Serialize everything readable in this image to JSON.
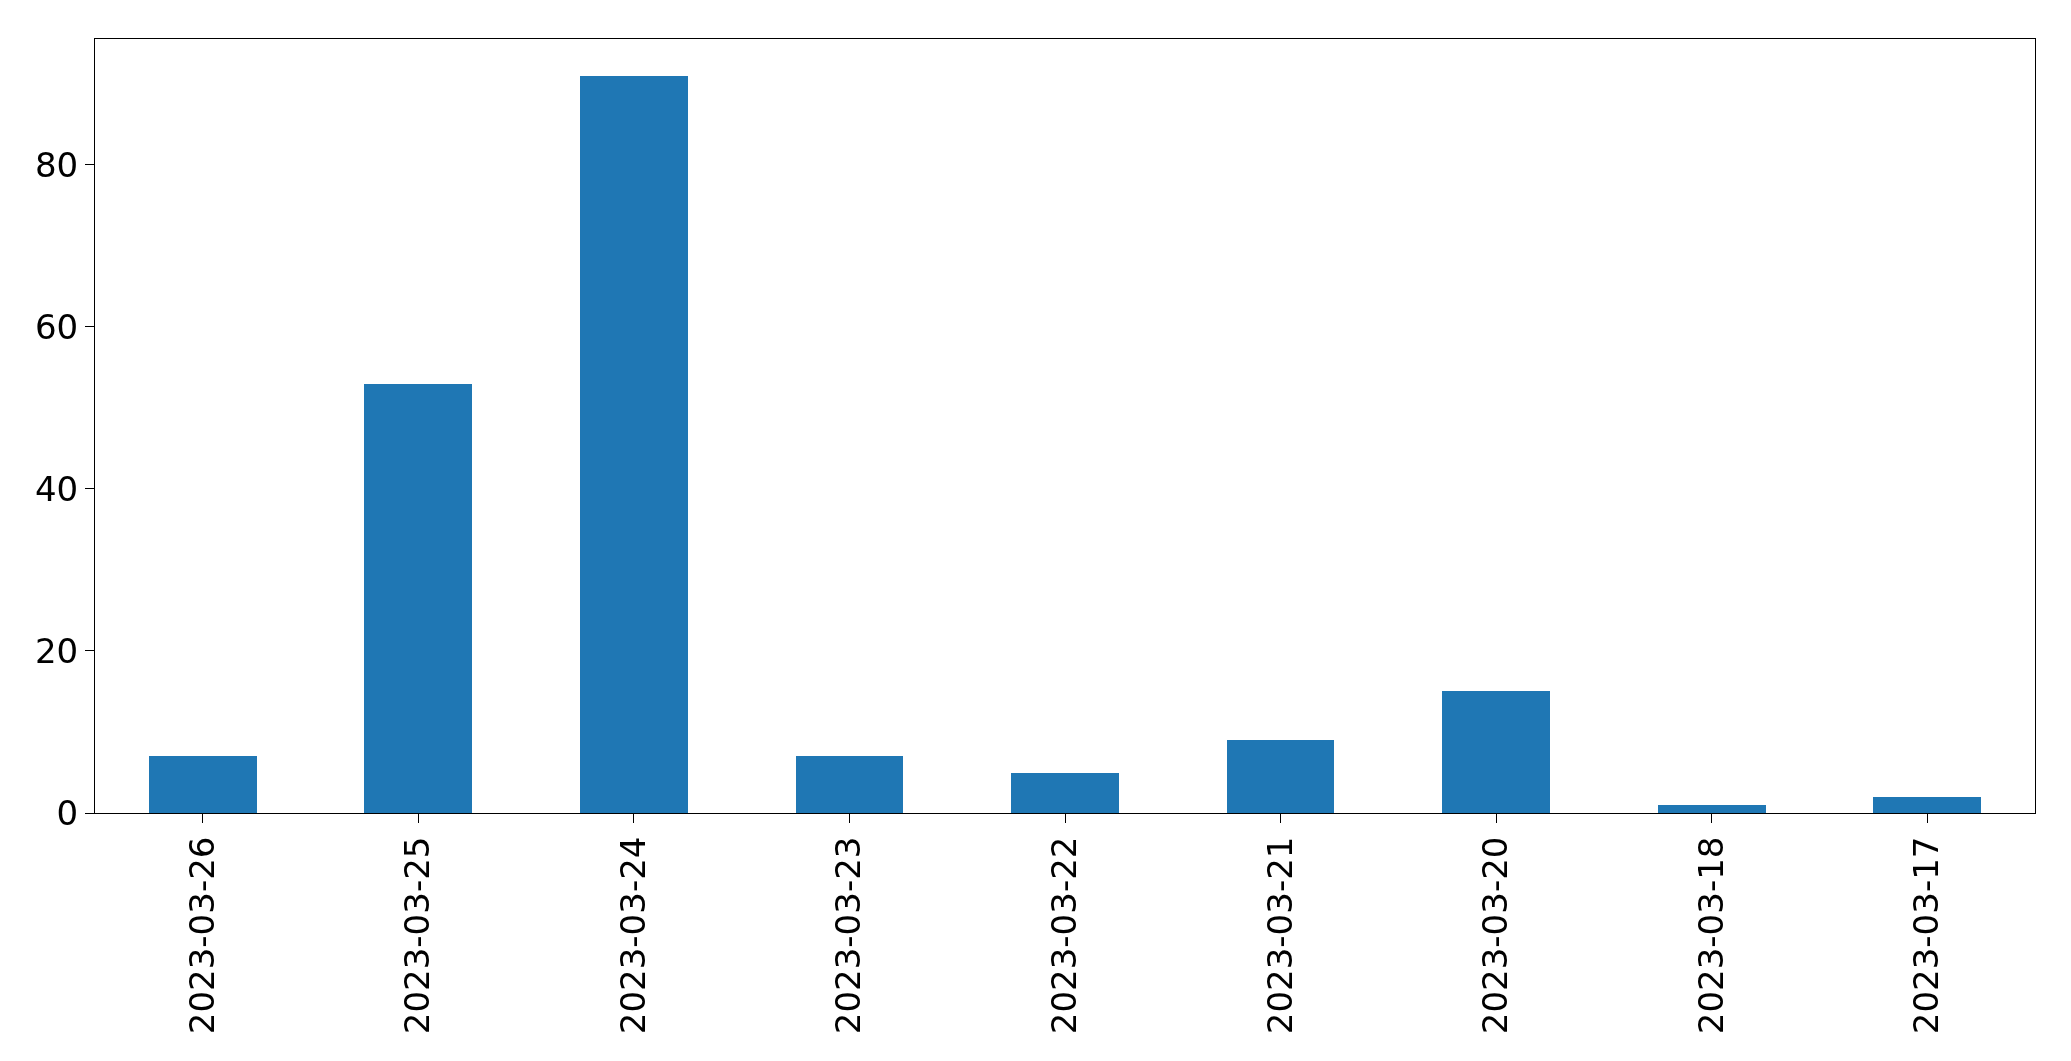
{
  "chart_data": {
    "type": "bar",
    "categories": [
      "2023-03-26",
      "2023-03-25",
      "2023-03-24",
      "2023-03-23",
      "2023-03-22",
      "2023-03-21",
      "2023-03-20",
      "2023-03-18",
      "2023-03-17"
    ],
    "values": [
      7,
      53,
      91,
      7,
      5,
      9,
      15,
      1,
      2
    ],
    "color": "#1f77b4",
    "ylim": [
      0,
      95.55
    ],
    "yticks": [
      0,
      20,
      40,
      60,
      80
    ]
  }
}
